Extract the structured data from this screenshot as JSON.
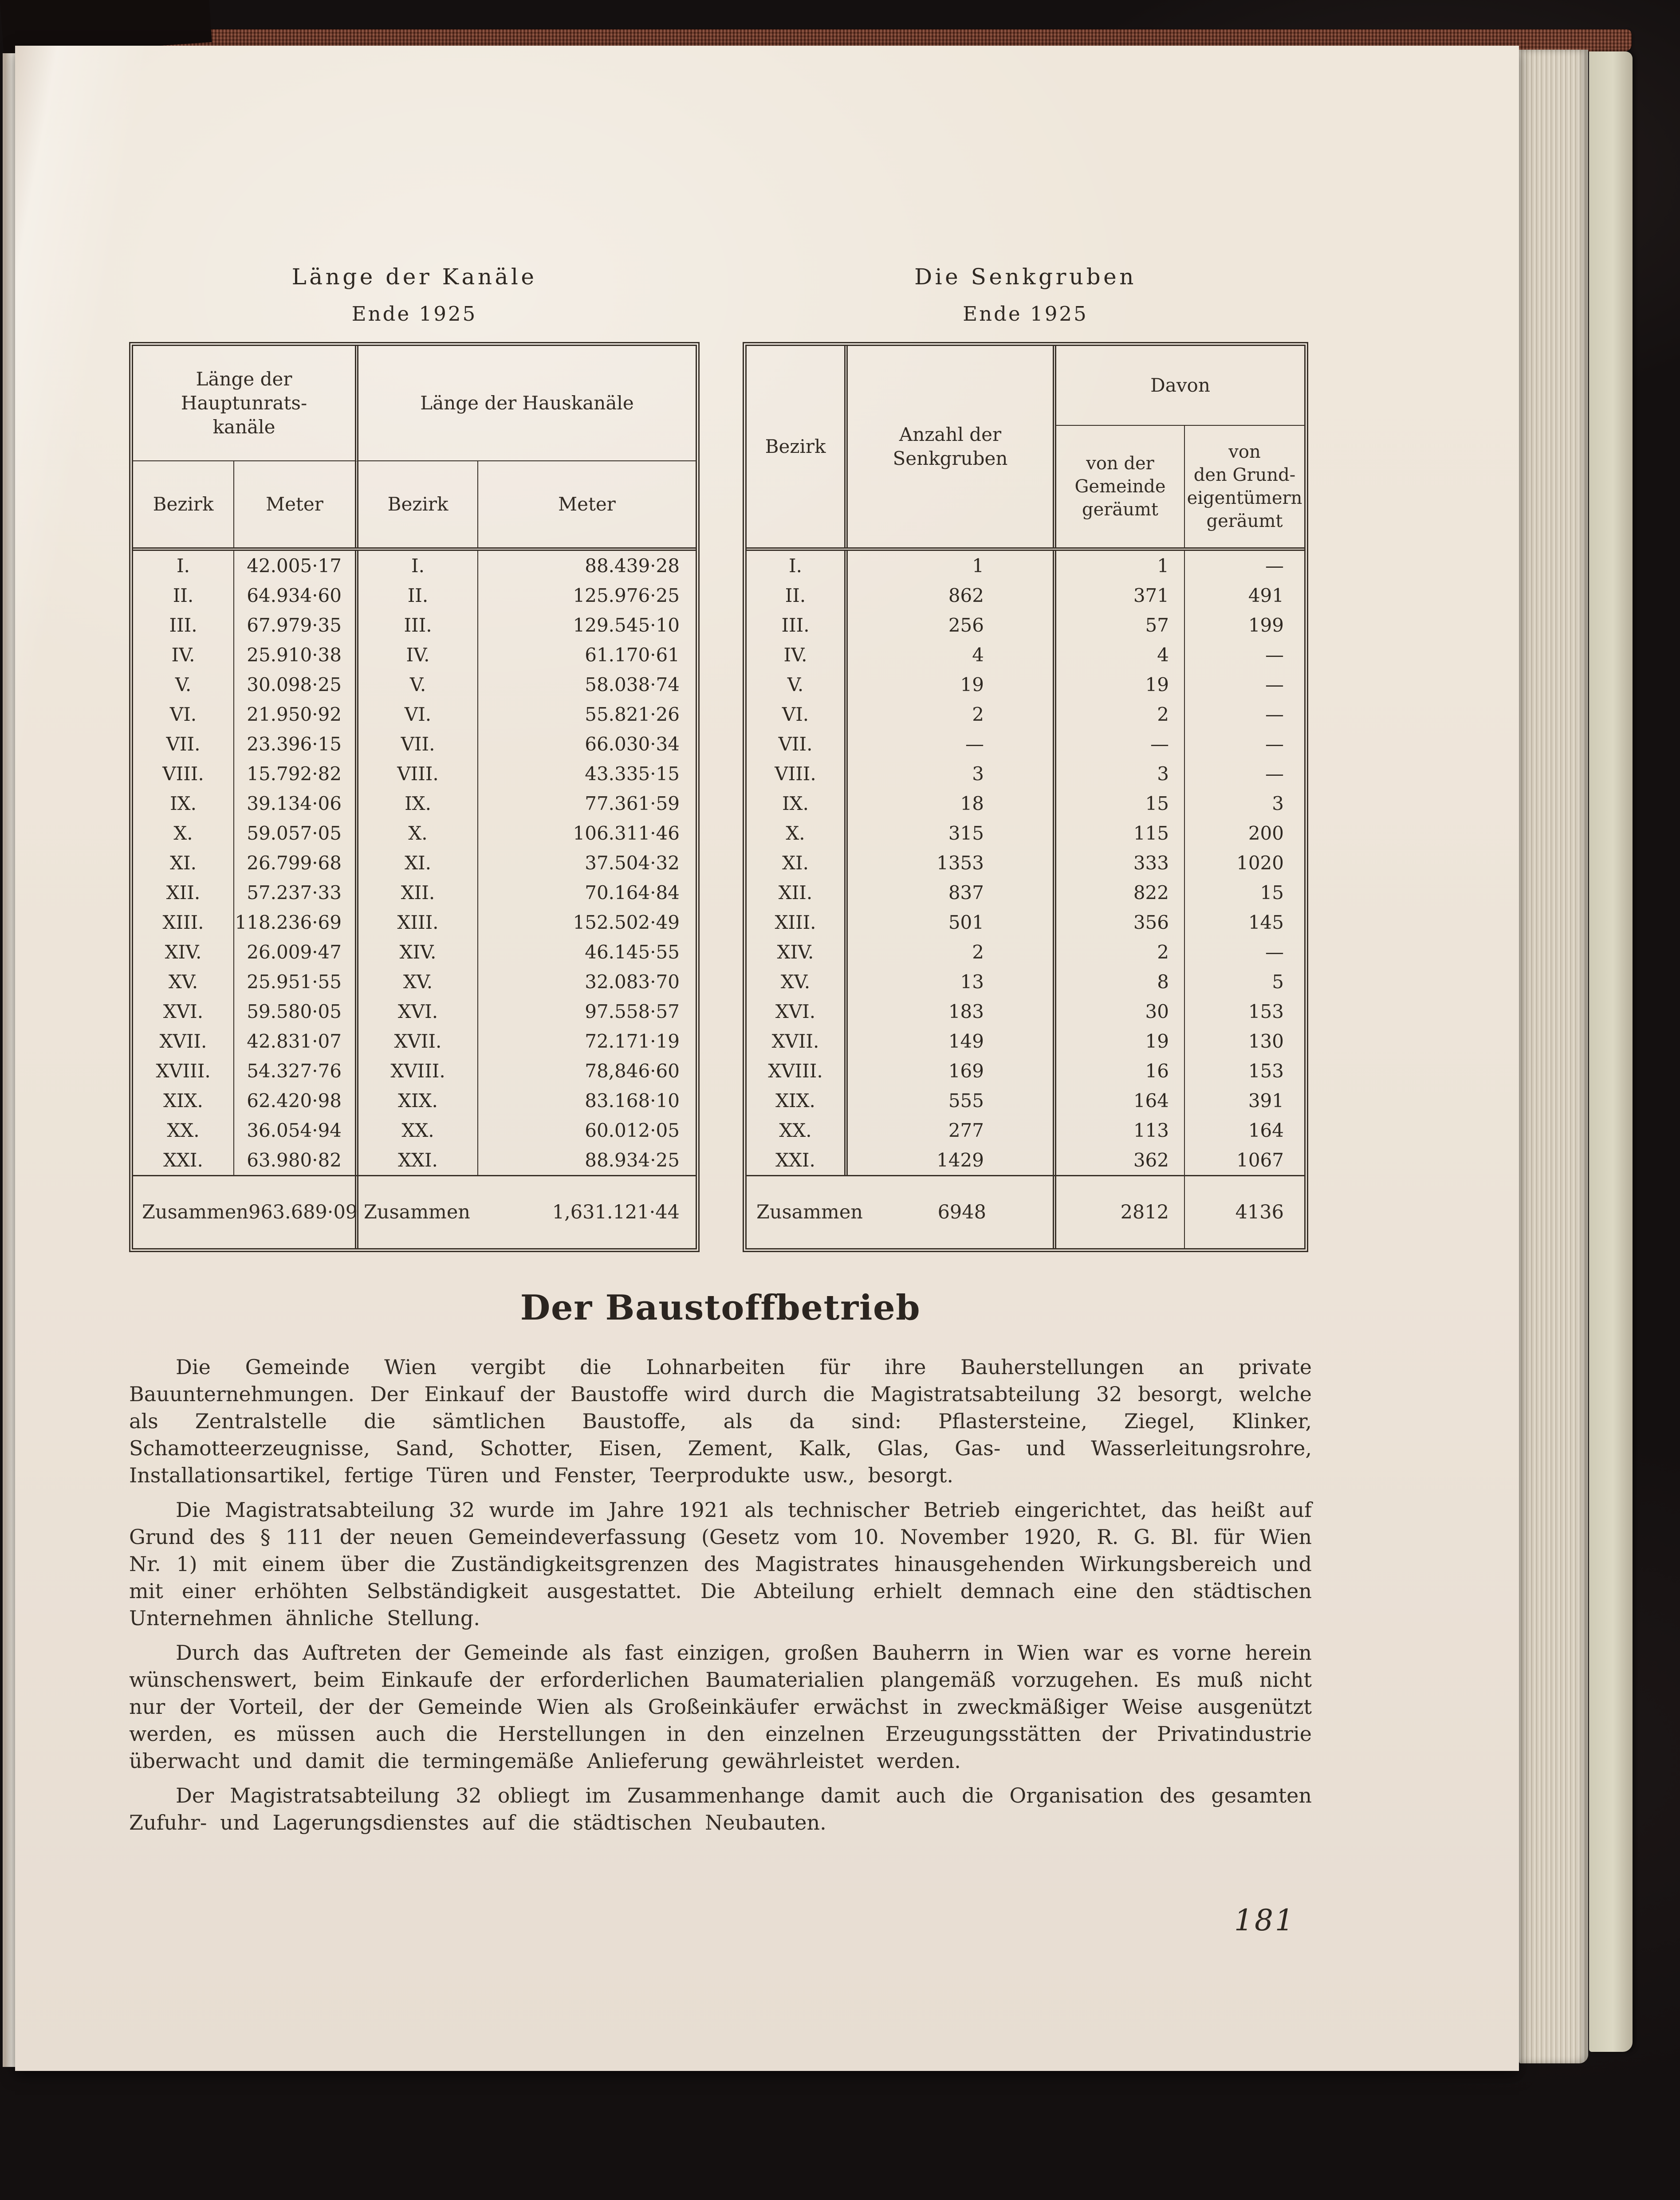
{
  "left_table": {
    "title": "Länge der Kanäle",
    "subtitle": "Ende 1925",
    "group1_header": "Länge der Hauptunrats-\nkanäle",
    "group2_header": "Länge der Hauskanäle",
    "col_bezirk": "Bezirk",
    "col_meter": "Meter",
    "rows": [
      {
        "b1": "I.",
        "m1": "42.005·17",
        "b2": "I.",
        "m2": "88.439·28"
      },
      {
        "b1": "II.",
        "m1": "64.934·60",
        "b2": "II.",
        "m2": "125.976·25"
      },
      {
        "b1": "III.",
        "m1": "67.979·35",
        "b2": "III.",
        "m2": "129.545·10"
      },
      {
        "b1": "IV.",
        "m1": "25.910·38",
        "b2": "IV.",
        "m2": "61.170·61"
      },
      {
        "b1": "V.",
        "m1": "30.098·25",
        "b2": "V.",
        "m2": "58.038·74"
      },
      {
        "b1": "VI.",
        "m1": "21.950·92",
        "b2": "VI.",
        "m2": "55.821·26"
      },
      {
        "b1": "VII.",
        "m1": "23.396·15",
        "b2": "VII.",
        "m2": "66.030·34"
      },
      {
        "b1": "VIII.",
        "m1": "15.792·82",
        "b2": "VIII.",
        "m2": "43.335·15"
      },
      {
        "b1": "IX.",
        "m1": "39.134·06",
        "b2": "IX.",
        "m2": "77.361·59"
      },
      {
        "b1": "X.",
        "m1": "59.057·05",
        "b2": "X.",
        "m2": "106.311·46"
      },
      {
        "b1": "XI.",
        "m1": "26.799·68",
        "b2": "XI.",
        "m2": "37.504·32"
      },
      {
        "b1": "XII.",
        "m1": "57.237·33",
        "b2": "XII.",
        "m2": "70.164·84"
      },
      {
        "b1": "XIII.",
        "m1": "118.236·69",
        "b2": "XIII.",
        "m2": "152.502·49"
      },
      {
        "b1": "XIV.",
        "m1": "26.009·47",
        "b2": "XIV.",
        "m2": "46.145·55"
      },
      {
        "b1": "XV.",
        "m1": "25.951·55",
        "b2": "XV.",
        "m2": "32.083·70"
      },
      {
        "b1": "XVI.",
        "m1": "59.580·05",
        "b2": "XVI.",
        "m2": "97.558·57"
      },
      {
        "b1": "XVII.",
        "m1": "42.831·07",
        "b2": "XVII.",
        "m2": "72.171·19"
      },
      {
        "b1": "XVIII.",
        "m1": "54.327·76",
        "b2": "XVIII.",
        "m2": "78,846·60"
      },
      {
        "b1": "XIX.",
        "m1": "62.420·98",
        "b2": "XIX.",
        "m2": "83.168·10"
      },
      {
        "b1": "XX.",
        "m1": "36.054·94",
        "b2": "XX.",
        "m2": "60.012·05"
      },
      {
        "b1": "XXI.",
        "m1": "63.980·82",
        "b2": "XXI.",
        "m2": "88.934·25"
      }
    ],
    "total_label1": "Zusammen",
    "total1": "963.689·09",
    "total_label2": "Zusammen",
    "total2": "1,631.121·44"
  },
  "right_table": {
    "title": "Die Senkgruben",
    "subtitle": "Ende 1925",
    "col_bezirk": "Bezirk",
    "col_anzahl": "Anzahl der\nSenkgruben",
    "davon": "Davon",
    "col_gemeinde": "von der\nGemeinde\ngeräumt",
    "col_grund": "von\nden Grund-\neigentümern\ngeräumt",
    "rows": [
      {
        "bezirk": "I.",
        "anzahl": "1",
        "gemeinde": "1",
        "grund": "—"
      },
      {
        "bezirk": "II.",
        "anzahl": "862",
        "gemeinde": "371",
        "grund": "491"
      },
      {
        "bezirk": "III.",
        "anzahl": "256",
        "gemeinde": "57",
        "grund": "199"
      },
      {
        "bezirk": "IV.",
        "anzahl": "4",
        "gemeinde": "4",
        "grund": "—"
      },
      {
        "bezirk": "V.",
        "anzahl": "19",
        "gemeinde": "19",
        "grund": "—"
      },
      {
        "bezirk": "VI.",
        "anzahl": "2",
        "gemeinde": "2",
        "grund": "—"
      },
      {
        "bezirk": "VII.",
        "anzahl": "—",
        "gemeinde": "—",
        "grund": "—"
      },
      {
        "bezirk": "VIII.",
        "anzahl": "3",
        "gemeinde": "3",
        "grund": "—"
      },
      {
        "bezirk": "IX.",
        "anzahl": "18",
        "gemeinde": "15",
        "grund": "3"
      },
      {
        "bezirk": "X.",
        "anzahl": "315",
        "gemeinde": "115",
        "grund": "200"
      },
      {
        "bezirk": "XI.",
        "anzahl": "1353",
        "gemeinde": "333",
        "grund": "1020"
      },
      {
        "bezirk": "XII.",
        "anzahl": "837",
        "gemeinde": "822",
        "grund": "15"
      },
      {
        "bezirk": "XIII.",
        "anzahl": "501",
        "gemeinde": "356",
        "grund": "145"
      },
      {
        "bezirk": "XIV.",
        "anzahl": "2",
        "gemeinde": "2",
        "grund": "—"
      },
      {
        "bezirk": "XV.",
        "anzahl": "13",
        "gemeinde": "8",
        "grund": "5"
      },
      {
        "bezirk": "XVI.",
        "anzahl": "183",
        "gemeinde": "30",
        "grund": "153"
      },
      {
        "bezirk": "XVII.",
        "anzahl": "149",
        "gemeinde": "19",
        "grund": "130"
      },
      {
        "bezirk": "XVIII.",
        "anzahl": "169",
        "gemeinde": "16",
        "grund": "153"
      },
      {
        "bezirk": "XIX.",
        "anzahl": "555",
        "gemeinde": "164",
        "grund": "391"
      },
      {
        "bezirk": "XX.",
        "anzahl": "277",
        "gemeinde": "113",
        "grund": "164"
      },
      {
        "bezirk": "XXI.",
        "anzahl": "1429",
        "gemeinde": "362",
        "grund": "1067"
      }
    ],
    "total_label": "Zusammen",
    "total_anzahl": "6948",
    "total_gemeinde": "2812",
    "total_grund": "4136"
  },
  "article": {
    "heading": "Der Baustoffbetrieb",
    "paragraphs": [
      "Die Gemeinde Wien vergibt die Lohnarbeiten für ihre Bauherstellungen an private Bauunternehmungen. Der Einkauf der Baustoffe wird durch die Magistratsabteilung 32 besorgt, welche als Zentralstelle die sämtlichen Baustoffe, als da sind: Pflastersteine, Ziegel, Klinker, Schamotteerzeugnisse, Sand, Schotter, Eisen, Zement, Kalk, Glas, Gas- und Wasserleitungsrohre, Installationsartikel, fertige Türen und Fenster, Teerprodukte usw., besorgt.",
      "Die Magistratsabteilung 32 wurde im Jahre 1921 als technischer Betrieb eingerichtet, das heißt auf Grund des § 111 der neuen Gemeindeverfassung (Gesetz vom 10. November 1920, R. G. Bl. für Wien Nr. 1) mit einem über die Zuständigkeitsgrenzen des Magistrates hinausgehenden Wirkungsbereich und mit einer erhöhten Selbständigkeit ausgestattet. Die Abteilung erhielt demnach eine den städtischen Unternehmen ähnliche Stellung.",
      "Durch das Auftreten der Gemeinde als fast einzigen, großen Bauherrn in Wien war es vorne herein wünschenswert, beim Einkaufe der erforderlichen Baumaterialien plangemäß vorzugehen. Es muß nicht nur der Vorteil, der der Gemeinde Wien als Großeinkäufer erwächst in zweckmäßiger Weise ausgenützt werden, es müssen auch die Herstellungen in den einzelnen Erzeugungsstätten der Privatindustrie überwacht und damit die termingemäße Anlieferung gewährleistet werden.",
      "Der Magistratsabteilung 32 obliegt im Zusammenhange damit auch die Organisation des gesamten Zufuhr- und Lagerungsdienstes auf die städtischen Neubauten."
    ]
  },
  "page": {
    "number": "181"
  }
}
